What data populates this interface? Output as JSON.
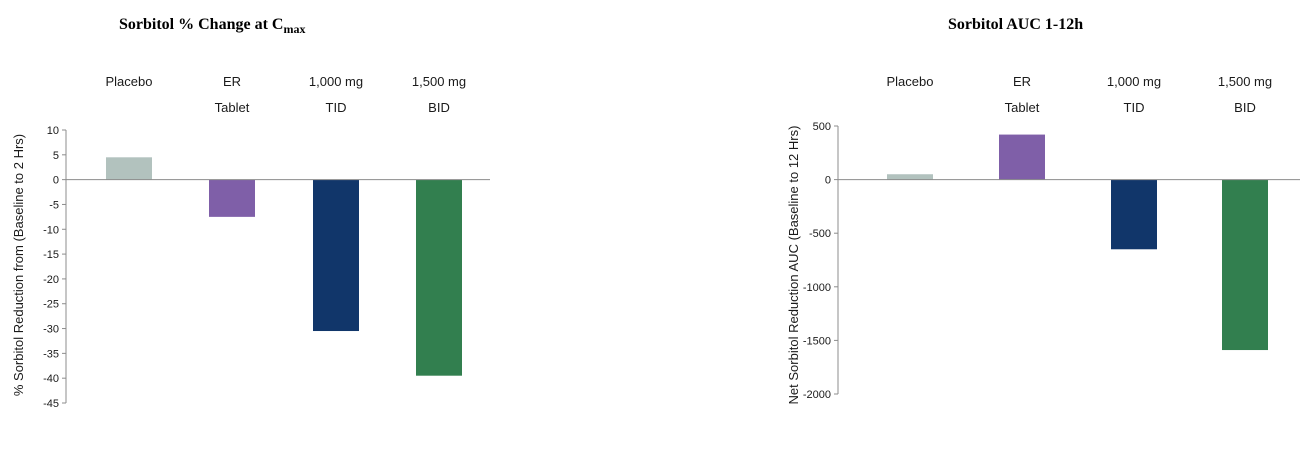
{
  "chart_data": [
    {
      "type": "bar",
      "title": "Sorbitol % Change at C",
      "title_subscript": "max",
      "ylabel": "% Sorbitol Reduction from (Baseline to 2 Hrs)",
      "xlabel": "",
      "categories": [
        [
          "Placebo"
        ],
        [
          "ER",
          "Tablet"
        ],
        [
          "1,000 mg",
          "TID"
        ],
        [
          "1,500 mg",
          "BID"
        ]
      ],
      "values": [
        4.5,
        -7.5,
        -30.5,
        -39.5
      ],
      "colors": [
        "#b2c2be",
        "#7f5fa8",
        "#11366a",
        "#327f4f"
      ],
      "ylim": [
        -45,
        10
      ],
      "yticks": [
        10,
        5,
        0,
        -5,
        -10,
        -15,
        -20,
        -25,
        -30,
        -35,
        -40,
        -45
      ],
      "grid": false,
      "legend": "none"
    },
    {
      "type": "bar",
      "title": "Sorbitol AUC 1-12h",
      "ylabel": "Net Sorbitol Reduction AUC (Baseline to 12 Hrs)",
      "xlabel": "",
      "categories": [
        [
          "Placebo"
        ],
        [
          "ER",
          "Tablet"
        ],
        [
          "1,000 mg",
          "TID"
        ],
        [
          "1,500 mg",
          "BID"
        ]
      ],
      "values": [
        50,
        420,
        -650,
        -1590
      ],
      "colors": [
        "#b2c2be",
        "#7f5fa8",
        "#11366a",
        "#327f4f"
      ],
      "ylim": [
        -2000,
        500
      ],
      "yticks": [
        500,
        0,
        -500,
        -1000,
        -1500,
        -2000
      ],
      "grid": false,
      "legend": "none"
    }
  ]
}
